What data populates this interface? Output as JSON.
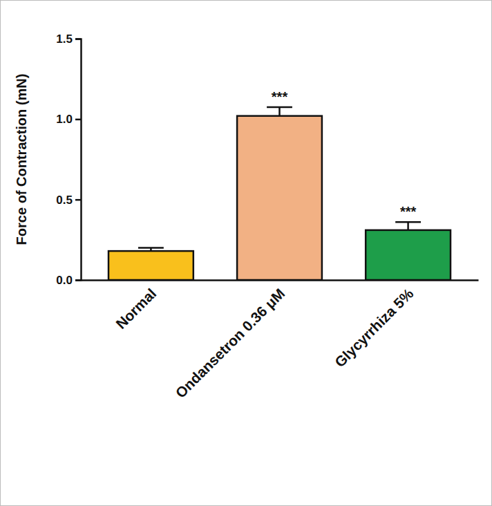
{
  "chart_data": {
    "type": "bar",
    "y_label": "Force of Contraction (mN)",
    "categories": [
      "Normal",
      "Ondansetron 0.36 μM",
      "Glycyrrhiza 5%"
    ],
    "values": [
      0.18,
      1.02,
      0.31
    ],
    "errors": [
      0.02,
      0.055,
      0.05
    ],
    "colors": [
      "#f9c01c",
      "#f2b184",
      "#1e9e4a"
    ],
    "annotations": [
      {
        "category": "Ondansetron 0.36 μM",
        "text": "***"
      },
      {
        "category": "Glycyrrhiza 5%",
        "text": "***"
      }
    ],
    "ylim": [
      0,
      1.5
    ],
    "yticks": [
      {
        "value": 0,
        "label": "0.0"
      },
      0.5,
      {
        "value": 1,
        "label": "1.0"
      },
      1.5
    ],
    "grid": false
  }
}
